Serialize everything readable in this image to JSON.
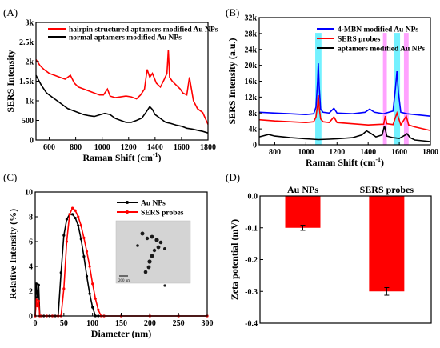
{
  "chart_data": [
    {
      "panel": "(A)",
      "type": "line",
      "xlabel": "Raman Shift (cm",
      "xlabel_sup": "-1",
      "xlabel_end": ")",
      "ylabel": "SERS Intensity",
      "xlim": [
        500,
        1800
      ],
      "ylim": [
        0,
        3000
      ],
      "xticks": [
        600,
        800,
        1000,
        1200,
        1400,
        1600,
        1800
      ],
      "yticks": [
        0,
        500,
        1000,
        1500,
        2000,
        2500,
        3000
      ],
      "ytick_labels": [
        "0",
        "500",
        "1k",
        "1.5k",
        "2k",
        "2.5k",
        "3k"
      ],
      "legend": "top-left",
      "series": [
        {
          "name": "hairpin structured aptamers modified Au NPs",
          "color": "#ff0000",
          "x": [
            500,
            530,
            560,
            600,
            640,
            680,
            720,
            760,
            790,
            820,
            860,
            900,
            940,
            980,
            1010,
            1040,
            1060,
            1100,
            1140,
            1180,
            1220,
            1260,
            1290,
            1320,
            1340,
            1360,
            1380,
            1410,
            1440,
            1470,
            1490,
            1500,
            1510,
            1530,
            1560,
            1590,
            1610,
            1640,
            1660,
            1690,
            1720,
            1760,
            1800
          ],
          "y": [
            2050,
            1900,
            1800,
            1700,
            1650,
            1600,
            1550,
            1650,
            1450,
            1350,
            1300,
            1250,
            1200,
            1150,
            1150,
            1300,
            1120,
            1080,
            1100,
            1120,
            1100,
            1050,
            1150,
            1300,
            1800,
            1600,
            1700,
            1450,
            1350,
            1550,
            1700,
            2300,
            1600,
            1500,
            1400,
            1300,
            1200,
            1150,
            1600,
            1000,
            800,
            700,
            400
          ]
        },
        {
          "name": "normal aptamers modified Au NPs",
          "color": "#000000",
          "x": [
            500,
            540,
            580,
            620,
            660,
            700,
            740,
            780,
            820,
            860,
            900,
            940,
            980,
            1020,
            1060,
            1100,
            1140,
            1180,
            1220,
            1260,
            1300,
            1330,
            1360,
            1380,
            1400,
            1440,
            1480,
            1520,
            1560,
            1600,
            1640,
            1680,
            1720,
            1760,
            1800
          ],
          "y": [
            1650,
            1400,
            1200,
            1100,
            1000,
            900,
            800,
            750,
            700,
            650,
            620,
            600,
            640,
            680,
            650,
            550,
            500,
            450,
            450,
            500,
            560,
            700,
            850,
            780,
            650,
            550,
            450,
            420,
            380,
            350,
            300,
            280,
            250,
            220,
            180
          ]
        }
      ]
    },
    {
      "panel": "(B)",
      "type": "line",
      "xlabel": "Raman Shift (cm",
      "xlabel_sup": "-1",
      "xlabel_end": ")",
      "ylabel": "SERS Intensity (a.u.)",
      "xlim": [
        700,
        1800
      ],
      "ylim": [
        0,
        32000
      ],
      "xticks": [
        800,
        1000,
        1200,
        1400,
        1600,
        1800
      ],
      "yticks": [
        0,
        4000,
        8000,
        12000,
        16000,
        20000,
        24000,
        28000,
        32000
      ],
      "ytick_labels": [
        "0",
        "4k",
        "8k",
        "12k",
        "16k",
        "20k",
        "24k",
        "28k",
        "32k"
      ],
      "legend": "top-right",
      "highlights": [
        {
          "x0": 1060,
          "x1": 1100,
          "color": "#00e5ff"
        },
        {
          "x0": 1565,
          "x1": 1605,
          "color": "#00e5ff"
        },
        {
          "x0": 1495,
          "x1": 1520,
          "color": "#ff55ff"
        },
        {
          "x0": 1630,
          "x1": 1660,
          "color": "#ff55ff"
        }
      ],
      "series": [
        {
          "name": "4-MBN modified Au NPs",
          "color": "#0000ff",
          "x": [
            700,
            800,
            900,
            1000,
            1050,
            1065,
            1075,
            1080,
            1085,
            1095,
            1110,
            1150,
            1180,
            1200,
            1300,
            1380,
            1410,
            1440,
            1500,
            1560,
            1575,
            1585,
            1595,
            1610,
            1650,
            1700,
            1800
          ],
          "y": [
            8200,
            8000,
            7800,
            7600,
            7800,
            9500,
            16000,
            20500,
            15000,
            9000,
            8200,
            8000,
            9200,
            8000,
            7800,
            8200,
            9000,
            8200,
            7800,
            8500,
            14000,
            18500,
            13000,
            8200,
            7800,
            7600,
            7200
          ]
        },
        {
          "name": "SERS probes",
          "color": "#ff0000",
          "x": [
            700,
            800,
            900,
            1000,
            1050,
            1065,
            1075,
            1080,
            1085,
            1095,
            1110,
            1150,
            1180,
            1200,
            1300,
            1400,
            1500,
            1510,
            1520,
            1560,
            1585,
            1610,
            1645,
            1660,
            1700,
            1800
          ],
          "y": [
            6300,
            6000,
            5800,
            5600,
            5800,
            7000,
            10000,
            12500,
            9500,
            6500,
            5800,
            5600,
            7000,
            5600,
            5300,
            5000,
            5200,
            7200,
            5300,
            5100,
            8000,
            5000,
            7200,
            5000,
            4500,
            3600
          ]
        },
        {
          "name": "aptamers modified Au NPs",
          "color": "#000000",
          "x": [
            700,
            760,
            800,
            900,
            1000,
            1080,
            1150,
            1200,
            1300,
            1360,
            1390,
            1420,
            1450,
            1490,
            1505,
            1520,
            1560,
            1600,
            1640,
            1650,
            1670,
            1700,
            1800
          ],
          "y": [
            2000,
            2600,
            2200,
            1800,
            1500,
            1300,
            1400,
            1500,
            1800,
            2500,
            3500,
            2800,
            2000,
            2500,
            4800,
            2200,
            1800,
            1600,
            2500,
            2800,
            1800,
            1200,
            800
          ]
        }
      ]
    },
    {
      "panel": "(C)",
      "type": "line",
      "xlabel": "Diameter (nm)",
      "ylabel": "Relative Intensity (%)",
      "xlim": [
        0,
        300
      ],
      "ylim": [
        0,
        10
      ],
      "xticks": [
        0,
        50,
        100,
        150,
        200,
        250,
        300
      ],
      "yticks": [
        0,
        2,
        4,
        6,
        8,
        10
      ],
      "legend": "top-right",
      "series": [
        {
          "name": "Au NPs",
          "color": "#000000",
          "x": [
            0,
            2,
            4,
            6,
            8,
            10,
            15,
            20,
            25,
            30,
            35,
            40,
            45,
            50,
            55,
            60,
            65,
            70,
            75,
            80,
            85,
            90,
            95,
            100,
            105,
            110,
            120,
            150,
            200,
            250,
            300
          ],
          "y": [
            0,
            2.6,
            1.5,
            2.5,
            0,
            0,
            0,
            0,
            0,
            0,
            0,
            0,
            3.5,
            6.5,
            7.8,
            8.2,
            8.2,
            7.9,
            7.3,
            6.2,
            4.8,
            3.2,
            1.8,
            0.7,
            0,
            0,
            0,
            0,
            0,
            0,
            0
          ]
        },
        {
          "name": "SERS probes",
          "color": "#ff0000",
          "x": [
            0,
            2,
            4,
            6,
            8,
            10,
            20,
            30,
            40,
            45,
            50,
            55,
            60,
            65,
            70,
            75,
            80,
            85,
            90,
            95,
            100,
            105,
            110,
            115,
            120,
            150,
            200,
            250,
            300
          ],
          "y": [
            0,
            1.3,
            0.8,
            1.2,
            0,
            0,
            0,
            0,
            0,
            0,
            2.2,
            6.0,
            8.2,
            8.7,
            8.5,
            8.0,
            7.3,
            6.3,
            5.2,
            4.0,
            2.6,
            1.4,
            0.5,
            0,
            0,
            0,
            0,
            0,
            0
          ]
        }
      ],
      "inset": {
        "scale_bar_text": "200 nm"
      }
    },
    {
      "panel": "(D)",
      "type": "bar",
      "ylabel": "Zeta potential (mV)",
      "categories": [
        "Au NPs",
        "SERS probes"
      ],
      "values": [
        -0.1,
        -0.3
      ],
      "errors": [
        0.008,
        0.012
      ],
      "bar_color": "#ff0000",
      "ylim": [
        -0.4,
        0
      ],
      "yticks": [
        0.0,
        -0.1,
        -0.2,
        -0.3,
        -0.4
      ],
      "ytick_labels": [
        "0.0",
        "-0.1",
        "-0.2",
        "-0.3",
        "-0.4"
      ]
    }
  ]
}
